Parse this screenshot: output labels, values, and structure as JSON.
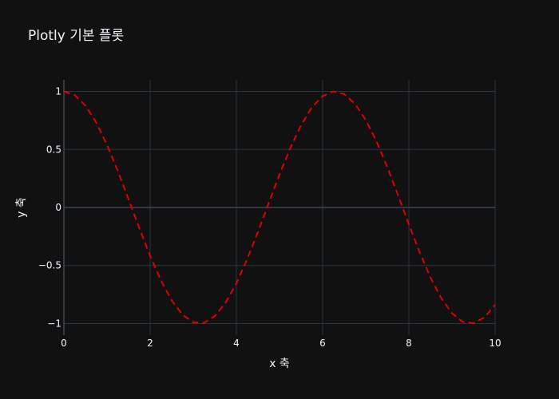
{
  "chart_data": {
    "type": "line",
    "title": "Plotly 기본 플롯",
    "xlabel": "x 축",
    "ylabel": "y 축",
    "xlim": [
      0,
      10
    ],
    "ylim": [
      -1.1,
      1.1
    ],
    "x_ticks": [
      0,
      2,
      4,
      6,
      8,
      10
    ],
    "y_ticks": [
      1,
      0.5,
      0,
      -0.5,
      -1
    ],
    "x_tick_labels": [
      "0",
      "2",
      "4",
      "6",
      "8",
      "10"
    ],
    "y_tick_labels": [
      "1",
      "0.5",
      "0",
      "−0.5",
      "−1"
    ],
    "grid": true,
    "series": [
      {
        "color": "#e00000",
        "dash": "dash",
        "x": [
          0,
          0.25,
          0.5,
          0.75,
          1,
          1.25,
          1.5,
          1.75,
          2,
          2.25,
          2.5,
          2.75,
          3,
          3.25,
          3.5,
          3.75,
          4,
          4.25,
          4.5,
          4.75,
          5,
          5.25,
          5.5,
          5.75,
          6,
          6.25,
          6.5,
          6.75,
          7,
          7.25,
          7.5,
          7.75,
          8,
          8.25,
          8.5,
          8.75,
          9,
          9.25,
          9.5,
          9.75,
          10
        ],
        "y": [
          1,
          0.969,
          0.878,
          0.732,
          0.54,
          0.315,
          0.071,
          -0.178,
          -0.416,
          -0.628,
          -0.801,
          -0.924,
          -0.99,
          -0.994,
          -0.936,
          -0.82,
          -0.654,
          -0.446,
          -0.211,
          0.038,
          0.284,
          0.512,
          0.709,
          0.862,
          0.96,
          1,
          0.977,
          0.893,
          0.754,
          0.569,
          0.347,
          0.105,
          -0.146,
          -0.386,
          -0.602,
          -0.78,
          -0.911,
          -0.985,
          -0.997,
          -0.948,
          -0.839
        ]
      }
    ]
  }
}
